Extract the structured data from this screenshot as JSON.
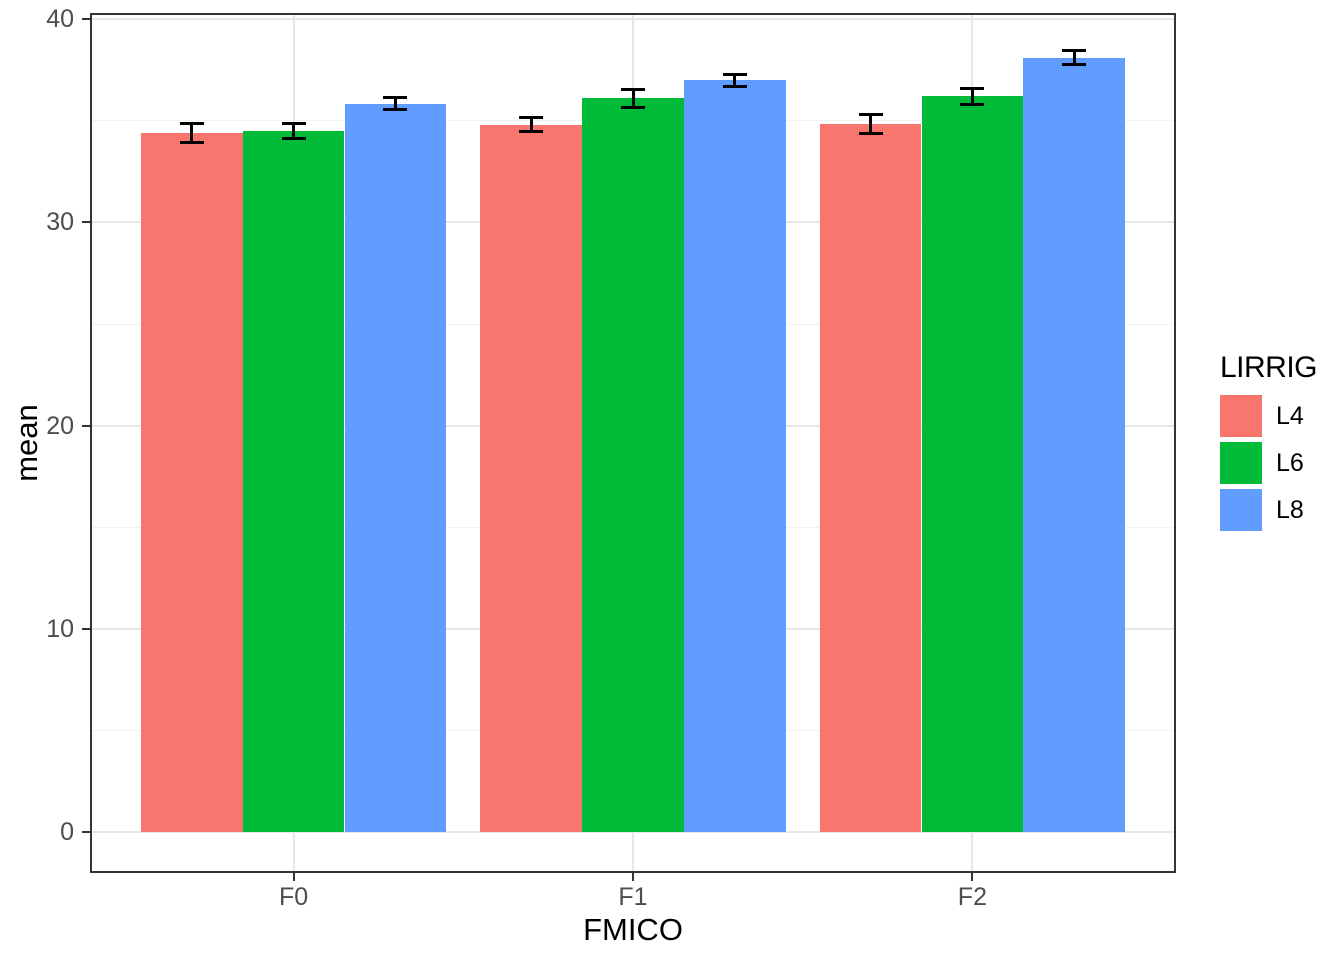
{
  "chart_data": {
    "type": "bar",
    "title": "",
    "xlabel": "FMICO",
    "ylabel": "mean",
    "categories": [
      "F0",
      "F1",
      "F2"
    ],
    "series": [
      {
        "name": "L4",
        "color": "#F8766D",
        "values": [
          34.4,
          34.8,
          34.85
        ],
        "errors": [
          0.45,
          0.35,
          0.45
        ]
      },
      {
        "name": "L6",
        "color": "#00BA38",
        "values": [
          34.5,
          36.1,
          36.2
        ],
        "errors": [
          0.35,
          0.45,
          0.4
        ]
      },
      {
        "name": "L8",
        "color": "#619CFF",
        "values": [
          35.85,
          37.0,
          38.1
        ],
        "errors": [
          0.3,
          0.3,
          0.35
        ]
      }
    ],
    "legend": {
      "title": "LIRRIG",
      "position": "right",
      "entries": [
        "L4",
        "L6",
        "L8"
      ]
    },
    "y_axis": {
      "tick_values": [
        0,
        10,
        20,
        30,
        40
      ],
      "tick_labels": [
        "0",
        "10",
        "20",
        "30",
        "40"
      ],
      "minor_tick_values": [
        5,
        15,
        25,
        35
      ],
      "range": [
        -2.0,
        40.3
      ]
    },
    "x_axis": {
      "tick_labels": [
        "F0",
        "F1",
        "F2"
      ]
    },
    "grid": {
      "major": true,
      "minor": true,
      "vertical_major": true
    },
    "theme": {
      "background": "#FFFFFF",
      "panel_border": "#333333",
      "grid_major_color": "#E7E7E7",
      "grid_minor_color": "#F2F2F2",
      "axis_text_color": "#4D4D4D",
      "axis_title_color": "#000000",
      "tick_mark_color": "#333333",
      "errorbar_color": "#000000"
    }
  }
}
